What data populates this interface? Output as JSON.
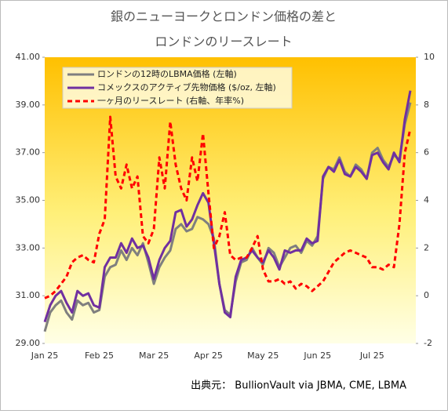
{
  "chart_data": {
    "type": "line",
    "title": [
      "銀のニューヨークとロンドン価格の差と",
      "ロンドンのリースレート"
    ],
    "categories": [
      "Jan 25",
      null,
      null,
      null,
      null,
      null,
      null,
      null,
      null,
      null,
      "Feb 25",
      null,
      null,
      null,
      null,
      null,
      null,
      null,
      null,
      null,
      "Mar 25",
      null,
      null,
      null,
      null,
      null,
      null,
      null,
      null,
      null,
      "Apr 25",
      null,
      null,
      null,
      null,
      null,
      null,
      null,
      null,
      null,
      "May 25",
      null,
      null,
      null,
      null,
      null,
      null,
      null,
      null,
      null,
      "Jun 25",
      null,
      null,
      null,
      null,
      null,
      null,
      null,
      null,
      null,
      "Jul 25",
      null,
      null,
      null,
      null,
      null,
      null,
      null
    ],
    "series": [
      {
        "name": "ロンドンの12時のLBMA価格 (左軸)",
        "color": "#7f7f7f",
        "values": [
          29.5,
          30.3,
          30.6,
          30.8,
          30.3,
          30.0,
          30.8,
          30.6,
          30.7,
          30.3,
          30.4,
          31.8,
          32.2,
          32.3,
          32.9,
          32.5,
          33.0,
          32.7,
          33.2,
          32.4,
          31.5,
          32.2,
          32.6,
          32.9,
          33.8,
          34.0,
          33.7,
          33.8,
          34.3,
          34.2,
          34.0,
          33.4,
          31.5,
          30.4,
          30.2,
          31.6,
          32.4,
          32.5,
          33.0,
          32.6,
          32.3,
          33.0,
          32.8,
          32.2,
          32.6,
          33.0,
          33.1,
          32.8,
          33.3,
          33.1,
          33.5,
          35.9,
          36.4,
          36.3,
          36.8,
          36.2,
          36.0,
          36.5,
          36.3,
          35.9,
          37.0,
          37.2,
          36.7,
          36.4,
          36.9,
          36.7,
          38.2,
          39.1
        ]
      },
      {
        "name": "コメックスのアクティブ先物価格 ($/oz, 左軸)",
        "color": "#7030a0",
        "values": [
          29.9,
          30.6,
          31.0,
          31.2,
          30.7,
          30.3,
          31.2,
          31.0,
          31.1,
          30.6,
          30.5,
          32.2,
          32.6,
          32.6,
          33.2,
          32.8,
          33.4,
          33.0,
          33.1,
          32.6,
          31.7,
          32.5,
          33.0,
          33.3,
          34.5,
          34.6,
          33.9,
          34.2,
          34.8,
          35.3,
          34.9,
          33.2,
          31.5,
          30.3,
          30.1,
          31.8,
          32.5,
          32.6,
          32.9,
          32.6,
          32.4,
          32.9,
          32.6,
          32.1,
          32.9,
          32.8,
          32.9,
          32.9,
          33.4,
          33.2,
          33.3,
          36.0,
          36.4,
          36.2,
          36.7,
          36.1,
          36.0,
          36.4,
          36.2,
          35.9,
          36.9,
          37.0,
          36.6,
          36.3,
          37.0,
          36.6,
          38.4,
          39.6
        ]
      },
      {
        "name": "一ヶ月のリースレート (右軸、年率%)",
        "color": "#ff0000",
        "axis": "y2",
        "dashed": true,
        "values": [
          -0.1,
          0,
          0.2,
          0.5,
          0.8,
          1.4,
          1.6,
          1.7,
          1.5,
          1.4,
          2.6,
          3.2,
          7.5,
          5.0,
          4.5,
          5.5,
          4.5,
          5.0,
          2.5,
          2.2,
          2.8,
          5.8,
          4.5,
          7.3,
          5.5,
          4.5,
          4.0,
          5.8,
          4.8,
          6.8,
          4.3,
          2.0,
          2.5,
          3.5,
          1.7,
          1.5,
          1.6,
          1.6,
          2.0,
          2.5,
          1.1,
          0.6,
          0.6,
          0.7,
          0.5,
          0.6,
          0.3,
          0.5,
          0.4,
          0.2,
          0.4,
          0.6,
          1.0,
          1.4,
          1.6,
          1.8,
          1.9,
          1.8,
          1.7,
          1.6,
          1.2,
          1.2,
          1.1,
          1.3,
          1.2,
          3.0,
          6.0,
          7.0
        ]
      }
    ],
    "ylim": [
      29,
      41
    ],
    "yticks": [
      {
        "value": 29,
        "label": "29.00"
      },
      {
        "value": 31,
        "label": "31.00"
      },
      {
        "value": 33,
        "label": "33.00"
      },
      {
        "value": 35,
        "label": "35.00"
      },
      {
        "value": 37,
        "label": "37.00"
      },
      {
        "value": 39,
        "label": "39.00"
      },
      {
        "value": 41,
        "label": "41.00"
      }
    ],
    "y2lim": [
      -2,
      10
    ],
    "y2ticks": [
      -2,
      0,
      2,
      4,
      6,
      8,
      10
    ],
    "source": "出典元： BullionVault via JBMA, CME, LBMA"
  }
}
